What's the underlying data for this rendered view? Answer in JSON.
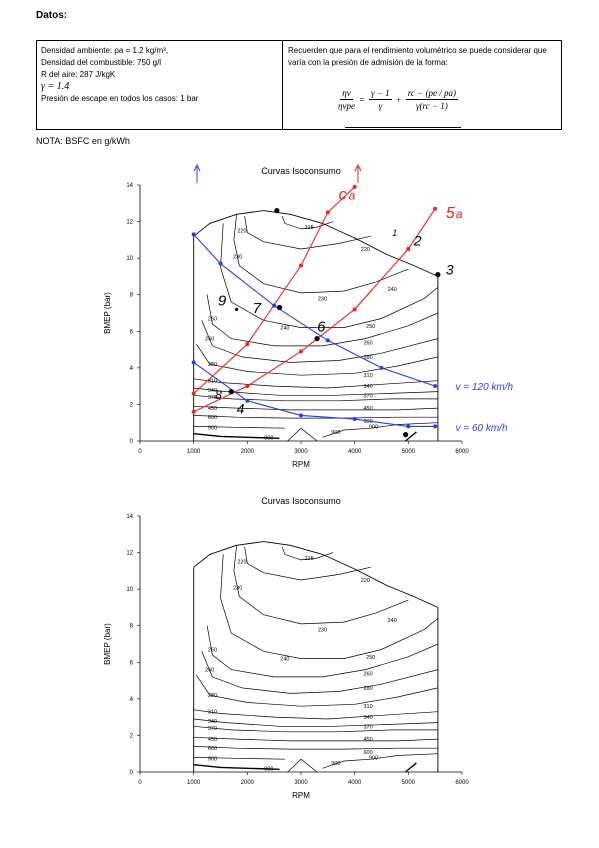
{
  "header": {
    "title": "Datos:",
    "left_lines": [
      "Densidad ambiente: ρa = 1.2 kg/m³,",
      "Densidad del combustible: 750 g/l",
      "R del aire: 287 J/kgK",
      "γ = 1.4",
      "Presión de escape en todos los casos: 1 bar"
    ],
    "right_text": "Recuerden que para el rendimiento volumétrico se puede considerar que varía con la presión de admisión de la forma:",
    "formula": {
      "lhs_num": "ηv",
      "lhs_den": "ηvpe",
      "eq": "=",
      "t1_num": "γ − 1",
      "t1_den": "γ",
      "plus": "+",
      "t2_num": "rc − (pe / pa)",
      "t2_den": "γ(rc − 1)"
    },
    "nota": "NOTA:  BSFC en g/kWh"
  },
  "chart_data": [
    {
      "type": "line",
      "title": "Curvas Isoconsumo",
      "xlabel": "RPM",
      "ylabel": "BMEP (bar)",
      "xlim": [
        0,
        6000
      ],
      "ylim": [
        0,
        14
      ],
      "xticks": [
        "0",
        "1000",
        "2000",
        "3000",
        "4000",
        "5000",
        "6000"
      ],
      "yticks": [
        "0",
        "2",
        "4",
        "6",
        "8",
        "10",
        "12",
        "14"
      ],
      "contour_labels": [
        "215",
        "220",
        "230",
        "230",
        "240",
        "240",
        "250",
        "250",
        "260",
        "260",
        "270",
        "280",
        "280",
        "310",
        "310",
        "340",
        "340",
        "370",
        "370",
        "450",
        "450",
        "600",
        "600",
        "900",
        "900",
        "900",
        "900"
      ],
      "annotations": {
        "red_series": [
          {
            "name": "c",
            "points": [
              [
                1000,
                1.6
              ],
              [
                2000,
                3.0
              ],
              [
                3000,
                4.9
              ],
              [
                4000,
                7.2
              ],
              [
                5000,
                10.5
              ],
              [
                5500,
                12.7
              ]
            ]
          },
          {
            "name": "5a",
            "points": [
              [
                1000,
                2.6
              ],
              [
                2000,
                5.3
              ],
              [
                3000,
                9.6
              ],
              [
                3500,
                12.5
              ],
              [
                4000,
                13.9
              ]
            ]
          }
        ],
        "blue_series": [
          {
            "name": "v = 120 km/h",
            "points": [
              [
                1000,
                11.3
              ],
              [
                1500,
                9.7
              ],
              [
                2500,
                7.4
              ],
              [
                3500,
                5.5
              ],
              [
                4500,
                4.0
              ],
              [
                5500,
                3.0
              ]
            ]
          },
          {
            "name": "v = 60 km/h",
            "points": [
              [
                1000,
                4.3
              ],
              [
                2000,
                2.2
              ],
              [
                3000,
                1.4
              ],
              [
                4000,
                1.2
              ],
              [
                5000,
                0.8
              ],
              [
                5500,
                0.8
              ]
            ]
          }
        ],
        "handwritten_labels": [
          "c",
          "a",
          "5",
          "a",
          "1",
          "2",
          "3",
          "4",
          "6",
          "7",
          "8",
          "9",
          "v = 120 km/h",
          "v = 60 km/h"
        ]
      }
    },
    {
      "type": "line",
      "title": "Curvas Isoconsumo",
      "xlabel": "RPM",
      "ylabel": "BMEP (bar)",
      "xlim": [
        0,
        6000
      ],
      "ylim": [
        0,
        14
      ],
      "xticks": [
        "0",
        "1000",
        "2000",
        "3000",
        "4000",
        "5000",
        "6000"
      ],
      "yticks": [
        "0",
        "2",
        "4",
        "6",
        "8",
        "10",
        "12",
        "14"
      ],
      "contour_labels": [
        "215",
        "220",
        "230",
        "230",
        "240",
        "240",
        "250",
        "250",
        "260",
        "260",
        "270",
        "280",
        "280",
        "310",
        "310",
        "340",
        "340",
        "370",
        "370",
        "450",
        "450",
        "600",
        "600",
        "900",
        "900",
        "900",
        "900"
      ]
    }
  ],
  "colors": {
    "red": "#e8251f",
    "blue": "#2a3fe0",
    "black": "#000000"
  }
}
